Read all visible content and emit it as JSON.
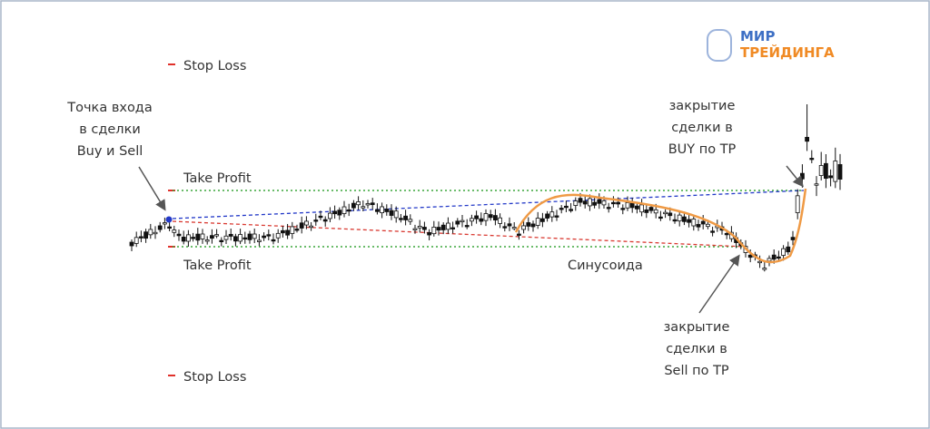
{
  "logo": {
    "line1": "МИР",
    "line2": "ТРЕЙДИНГА"
  },
  "labels": {
    "stop_loss_top": "Stop Loss",
    "take_profit_top": "Take Profit",
    "take_profit_bottom": "Take Profit",
    "stop_loss_bottom": "Stop Loss",
    "sinusoid": "Синусоида"
  },
  "annotations": {
    "entry": [
      "Точка входа",
      "в сделки",
      "Buy и Sell"
    ],
    "buy_close": [
      "закрытие",
      "сделки в",
      "BUY по TP"
    ],
    "sell_close": [
      "закрытие",
      "сделки в",
      "Sell по TP"
    ]
  }
}
